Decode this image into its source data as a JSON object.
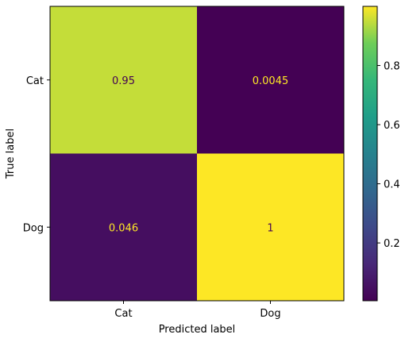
{
  "chart_data": {
    "type": "heatmap",
    "title": "",
    "xlabel": "Predicted label",
    "ylabel": "True label",
    "x_categories": [
      "Cat",
      "Dog"
    ],
    "y_categories": [
      "Cat",
      "Dog"
    ],
    "values": [
      [
        0.95,
        0.0045
      ],
      [
        0.046,
        1
      ]
    ],
    "value_labels": [
      [
        "0.95",
        "0.0045"
      ],
      [
        "0.046",
        "1"
      ]
    ],
    "colormap": "viridis",
    "colorbar": {
      "vmin": 0.0045,
      "vmax": 1,
      "ticks": [
        0.2,
        0.4,
        0.6,
        0.8
      ],
      "tick_labels": [
        "0.2",
        "0.4",
        "0.6",
        "0.8"
      ]
    },
    "text_colors": {
      "on_dark": "#fde725",
      "on_light": "#440154"
    }
  }
}
